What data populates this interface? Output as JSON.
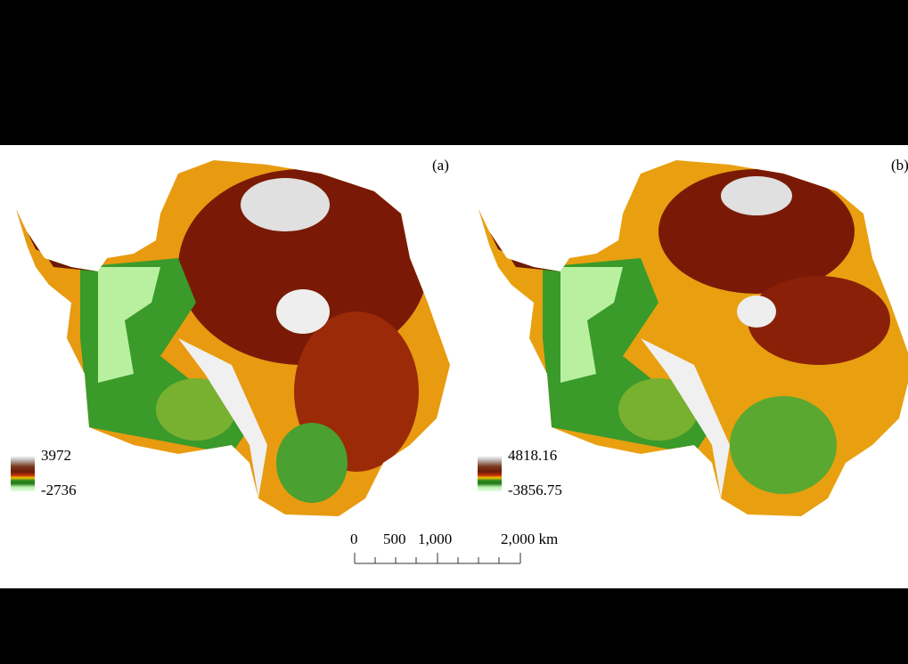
{
  "panels": [
    {
      "label": "(a)",
      "legend": {
        "max": "3972",
        "min": "-2736"
      }
    },
    {
      "label": "(b)",
      "legend": {
        "max": "4818.16",
        "min": "-3856.75"
      }
    }
  ],
  "colors": {
    "high": "#ffffff",
    "upper": "#6b1a06",
    "mid": "#f5a000",
    "lower": "#2a8a1e",
    "low": "#d8f8c8"
  },
  "scale_bar": {
    "ticks": [
      "0",
      "500",
      "1,000",
      "2,000 km"
    ]
  }
}
